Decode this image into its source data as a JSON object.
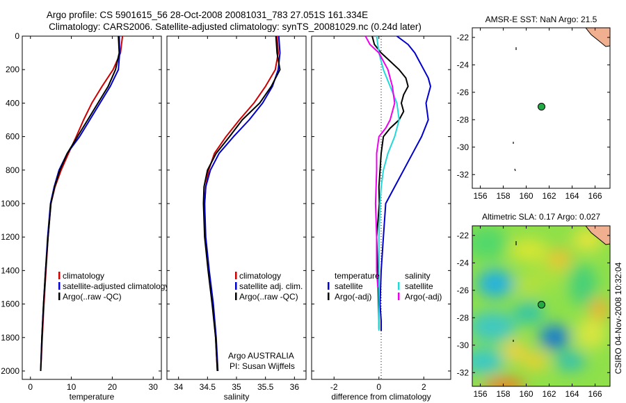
{
  "header": {
    "title_line1": "Argo profile: CS 5901615_56 28-Oct-2008 20081031_783 27.051S 161.334E",
    "title_line2": "Climatology: CARS2006. Satellite-adjusted climatology: synTS_20081029.nc (0.24d later)"
  },
  "side_label": "CSIRO 04-Nov-2008 10:32:04",
  "colors": {
    "climatology": "#cc0000",
    "satellite": "#0000cc",
    "argo": "#000000",
    "argo_salinity_diff": "#ee00ee",
    "satellite_salinity_diff": "#22d8d8",
    "land": "#f0b090",
    "float_marker": "#22aa44"
  },
  "chart_data": [
    {
      "id": "temperature",
      "type": "line",
      "xlabel": "temperature",
      "ylabel": "",
      "xlim": [
        -2,
        32
      ],
      "ylim": [
        2050,
        0
      ],
      "xticks": [
        0,
        10,
        20,
        30
      ],
      "yticks": [
        0,
        200,
        400,
        600,
        800,
        1000,
        1200,
        1400,
        1600,
        1800,
        2000
      ],
      "legend": [
        "climatology",
        "satellite-adjusted climatology",
        "Argo(..raw -QC)"
      ],
      "series": [
        {
          "key": "climatology",
          "points": [
            [
              22.5,
              0
            ],
            [
              22.0,
              100
            ],
            [
              20.2,
              200
            ],
            [
              17.5,
              300
            ],
            [
              15.0,
              400
            ],
            [
              13.0,
              500
            ],
            [
              11.2,
              600
            ],
            [
              9.3,
              700
            ],
            [
              7.5,
              800
            ],
            [
              6.0,
              900
            ],
            [
              5.0,
              1000
            ],
            [
              4.3,
              1200
            ],
            [
              3.8,
              1400
            ],
            [
              3.3,
              1600
            ],
            [
              2.9,
              1800
            ],
            [
              2.6,
              1950
            ]
          ]
        },
        {
          "key": "satellite",
          "points": [
            [
              21.7,
              0
            ],
            [
              21.8,
              100
            ],
            [
              21.5,
              200
            ],
            [
              19.5,
              300
            ],
            [
              17.0,
              400
            ],
            [
              14.5,
              500
            ],
            [
              12.0,
              600
            ],
            [
              9.0,
              700
            ],
            [
              7.0,
              800
            ],
            [
              5.8,
              900
            ],
            [
              4.9,
              1000
            ],
            [
              4.2,
              1200
            ],
            [
              3.7,
              1400
            ],
            [
              3.2,
              1600
            ],
            [
              2.8,
              1800
            ],
            [
              2.5,
              2000
            ]
          ]
        },
        {
          "key": "argo",
          "points": [
            [
              21.5,
              0
            ],
            [
              21.7,
              100
            ],
            [
              20.8,
              200
            ],
            [
              19.0,
              300
            ],
            [
              16.5,
              400
            ],
            [
              14.0,
              500
            ],
            [
              11.5,
              600
            ],
            [
              9.0,
              700
            ],
            [
              7.2,
              800
            ],
            [
              5.9,
              900
            ],
            [
              5.0,
              1000
            ],
            [
              4.3,
              1200
            ],
            [
              3.7,
              1400
            ],
            [
              3.2,
              1600
            ],
            [
              2.8,
              1800
            ],
            [
              2.5,
              2000
            ]
          ]
        }
      ]
    },
    {
      "id": "salinity",
      "type": "line",
      "xlabel": "salinity",
      "ylabel": "",
      "xlim": [
        33.8,
        36.2
      ],
      "ylim": [
        2050,
        0
      ],
      "xticks": [
        34,
        34.5,
        35,
        35.5,
        36
      ],
      "yticks": [],
      "legend": [
        "climatology",
        "satellite adj. clim.",
        "Argo(..raw -QC)"
      ],
      "annotation_line1": "Argo AUSTRALIA",
      "annotation_line2": "PI: Susan Wijffels",
      "series": [
        {
          "key": "climatology",
          "points": [
            [
              35.7,
              0
            ],
            [
              35.72,
              100
            ],
            [
              35.67,
              200
            ],
            [
              35.5,
              300
            ],
            [
              35.3,
              400
            ],
            [
              35.05,
              500
            ],
            [
              34.82,
              600
            ],
            [
              34.62,
              700
            ],
            [
              34.52,
              800
            ],
            [
              34.47,
              900
            ],
            [
              34.45,
              1000
            ],
            [
              34.46,
              1200
            ],
            [
              34.52,
              1400
            ],
            [
              34.59,
              1600
            ],
            [
              34.64,
              1800
            ],
            [
              34.67,
              2000
            ]
          ]
        },
        {
          "key": "satellite",
          "points": [
            [
              35.73,
              0
            ],
            [
              35.75,
              100
            ],
            [
              35.72,
              200
            ],
            [
              35.62,
              300
            ],
            [
              35.45,
              400
            ],
            [
              35.22,
              500
            ],
            [
              34.95,
              600
            ],
            [
              34.7,
              700
            ],
            [
              34.55,
              800
            ],
            [
              34.47,
              900
            ],
            [
              34.45,
              1000
            ],
            [
              34.47,
              1200
            ],
            [
              34.53,
              1400
            ],
            [
              34.6,
              1600
            ],
            [
              34.65,
              1800
            ],
            [
              34.68,
              2000
            ]
          ]
        },
        {
          "key": "argo",
          "points": [
            [
              35.68,
              0
            ],
            [
              35.7,
              100
            ],
            [
              35.75,
              200
            ],
            [
              35.6,
              300
            ],
            [
              35.4,
              400
            ],
            [
              35.1,
              500
            ],
            [
              34.88,
              600
            ],
            [
              34.65,
              700
            ],
            [
              34.5,
              800
            ],
            [
              34.44,
              900
            ],
            [
              34.43,
              1000
            ],
            [
              34.45,
              1200
            ],
            [
              34.51,
              1400
            ],
            [
              34.58,
              1600
            ],
            [
              34.64,
              1800
            ],
            [
              34.67,
              2000
            ]
          ]
        }
      ]
    },
    {
      "id": "difference",
      "type": "line",
      "xlabel": "difference from climatology",
      "ylabel": "",
      "xlim": [
        -3,
        3.2
      ],
      "ylim": [
        2050,
        0
      ],
      "xticks": [
        -2,
        0,
        2
      ],
      "yticks": [],
      "legend_temperature_header": "temperature",
      "legend_salinity_header": "salinity",
      "legend_temperature": [
        "satellite",
        "Argo(-adj)"
      ],
      "legend_salinity": [
        "satellite",
        "Argo(-adj)"
      ],
      "series": [
        {
          "key": "satellite",
          "points": [
            [
              0.8,
              0
            ],
            [
              1.3,
              50
            ],
            [
              1.6,
              100
            ],
            [
              1.8,
              150
            ],
            [
              2.0,
              200
            ],
            [
              2.2,
              250
            ],
            [
              2.3,
              300
            ],
            [
              2.1,
              400
            ],
            [
              2.2,
              500
            ],
            [
              1.9,
              600
            ],
            [
              1.5,
              700
            ],
            [
              1.1,
              800
            ],
            [
              0.7,
              900
            ],
            [
              0.3,
              1000
            ],
            [
              0.2,
              1200
            ],
            [
              0.1,
              1400
            ],
            [
              0.05,
              1600
            ],
            [
              0.1,
              1700
            ],
            [
              0.1,
              1760
            ]
          ]
        },
        {
          "key": "argo",
          "points": [
            [
              -0.3,
              0
            ],
            [
              -0.2,
              50
            ],
            [
              0.1,
              100
            ],
            [
              0.5,
              150
            ],
            [
              0.9,
              200
            ],
            [
              1.2,
              250
            ],
            [
              1.3,
              300
            ],
            [
              1.1,
              350
            ],
            [
              1.0,
              400
            ],
            [
              1.1,
              450
            ],
            [
              0.9,
              500
            ],
            [
              0.5,
              550
            ],
            [
              0.2,
              600
            ],
            [
              0.1,
              700
            ],
            [
              0.05,
              800
            ],
            [
              0.0,
              900
            ],
            [
              0.02,
              1000
            ],
            [
              -0.1,
              1200
            ],
            [
              -0.05,
              1400
            ],
            [
              -0.02,
              1600
            ],
            [
              0.0,
              1700
            ],
            [
              0.0,
              1750
            ]
          ]
        },
        {
          "key": "satellite_salinity",
          "points": [
            [
              -0.1,
              0
            ],
            [
              0.0,
              100
            ],
            [
              0.2,
              200
            ],
            [
              0.5,
              300
            ],
            [
              0.8,
              400
            ],
            [
              0.9,
              500
            ],
            [
              0.7,
              600
            ],
            [
              0.4,
              700
            ],
            [
              0.2,
              800
            ],
            [
              0.1,
              900
            ],
            [
              0.05,
              1000
            ],
            [
              0.0,
              1200
            ],
            [
              0.0,
              1400
            ],
            [
              0.0,
              1600
            ],
            [
              0.0,
              1760
            ]
          ]
        },
        {
          "key": "argo_salinity",
          "points": [
            [
              -0.6,
              0
            ],
            [
              -0.4,
              50
            ],
            [
              0.0,
              100
            ],
            [
              0.4,
              200
            ],
            [
              0.6,
              300
            ],
            [
              0.7,
              400
            ],
            [
              0.5,
              500
            ],
            [
              0.3,
              550
            ],
            [
              0.0,
              600
            ],
            [
              -0.1,
              700
            ],
            [
              -0.1,
              800
            ],
            [
              -0.15,
              1000
            ],
            [
              -0.1,
              1200
            ],
            [
              -0.1,
              1400
            ],
            [
              -0.05,
              1500
            ]
          ]
        }
      ]
    },
    {
      "id": "sst_map",
      "type": "scatter",
      "title": "AMSR-E SST: NaN Argo: 21.5",
      "xlim": [
        155.3,
        167.3
      ],
      "ylim": [
        -33,
        -21.3
      ],
      "xticks": [
        156,
        158,
        160,
        162,
        164,
        166
      ],
      "yticks": [
        -22,
        -24,
        -26,
        -28,
        -30,
        -32
      ],
      "float_position": [
        161.33,
        -27.05
      ]
    },
    {
      "id": "sla_map",
      "type": "heatmap",
      "title": "Altimetric SLA: 0.17 Argo: 0.027",
      "xlim": [
        155.3,
        167.3
      ],
      "ylim": [
        -33,
        -21.3
      ],
      "xticks": [
        156,
        158,
        160,
        162,
        164,
        166
      ],
      "yticks": [
        -22,
        -24,
        -26,
        -28,
        -30,
        -32
      ],
      "float_position": [
        161.33,
        -27.05
      ]
    }
  ]
}
